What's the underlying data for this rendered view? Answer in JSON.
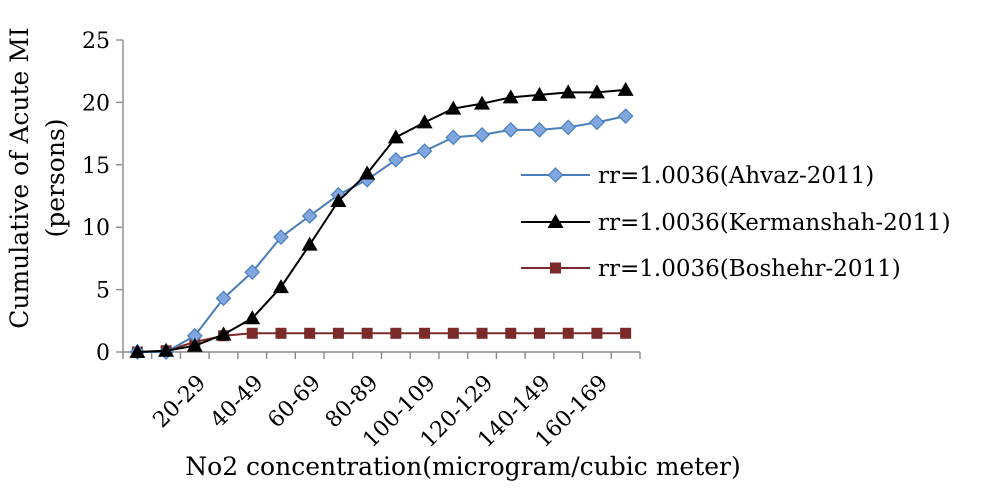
{
  "chart_data": {
    "type": "line",
    "title": "",
    "xlabel": "No2 concentration(microgram/cubic meter)",
    "ylabel": "Cumulative of Acute MI (persons)",
    "ylabel_lines": [
      "Cumulative of Acute MI",
      "(persons)"
    ],
    "ylim": [
      0,
      25
    ],
    "yticks": [
      0,
      5,
      10,
      15,
      20,
      25
    ],
    "grid": false,
    "legend_position": "right",
    "x_point_count": 18,
    "categories_labeled": [
      {
        "index": 2,
        "label": "20-29"
      },
      {
        "index": 4,
        "label": "40-49"
      },
      {
        "index": 6,
        "label": "60-69"
      },
      {
        "index": 8,
        "label": "80-89"
      },
      {
        "index": 10,
        "label": "100-109"
      },
      {
        "index": 12,
        "label": "120-129"
      },
      {
        "index": 14,
        "label": "140-149"
      },
      {
        "index": 16,
        "label": "160-169"
      }
    ],
    "series": [
      {
        "name": "rr=1.0036(Ahvaz-2011)",
        "color": "#4a7ebb",
        "marker": "diamond",
        "values": [
          0,
          0,
          1.3,
          4.3,
          6.4,
          9.2,
          10.9,
          12.6,
          13.8,
          15.4,
          16.1,
          17.2,
          17.4,
          17.8,
          17.8,
          18.0,
          18.4,
          18.9
        ]
      },
      {
        "name": "rr=1.0036(Kermanshah-2011)",
        "color": "#000000",
        "marker": "triangle",
        "values": [
          0,
          0.1,
          0.5,
          1.4,
          2.7,
          5.2,
          8.6,
          12.1,
          14.3,
          17.2,
          18.4,
          19.5,
          19.9,
          20.4,
          20.6,
          20.8,
          20.8,
          21.0
        ]
      },
      {
        "name": "rr=1.0036(Boshehr-2011)",
        "color": "#7b2a2a",
        "marker": "square",
        "values": [
          0,
          0.1,
          0.8,
          1.3,
          1.5,
          1.5,
          1.5,
          1.5,
          1.5,
          1.5,
          1.5,
          1.5,
          1.5,
          1.5,
          1.5,
          1.5,
          1.5,
          1.5
        ]
      }
    ]
  }
}
